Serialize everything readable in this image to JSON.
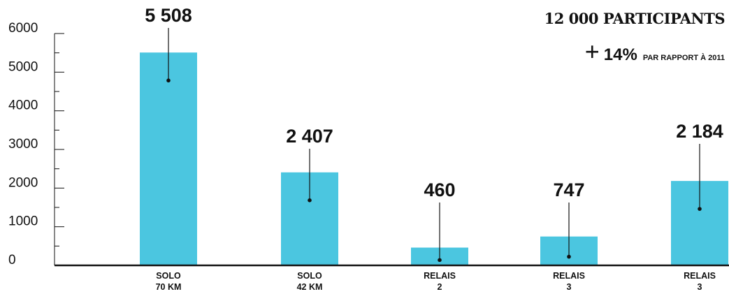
{
  "chart_data": {
    "type": "bar",
    "categories": [
      [
        "SOLO",
        "70 KM"
      ],
      [
        "SOLO",
        "42 KM"
      ],
      [
        "RELAIS",
        "2"
      ],
      [
        "RELAIS",
        "3"
      ],
      [
        "RELAIS",
        "3"
      ]
    ],
    "values": [
      5508,
      2407,
      460,
      747,
      2184
    ],
    "value_labels": [
      "5 508",
      "2 407",
      "460",
      "747",
      "2 184"
    ],
    "yticks": [
      0,
      1000,
      2000,
      3000,
      4000,
      5000,
      6000
    ],
    "ylim": [
      0,
      6000
    ],
    "bar_color": "#4bc6e0",
    "axis_color": "#111111"
  },
  "headline": {
    "total": "12 000 PARTICIPANTS",
    "plus": "+",
    "growth": "14%",
    "note": "PAR RAPPORT À 2011"
  }
}
